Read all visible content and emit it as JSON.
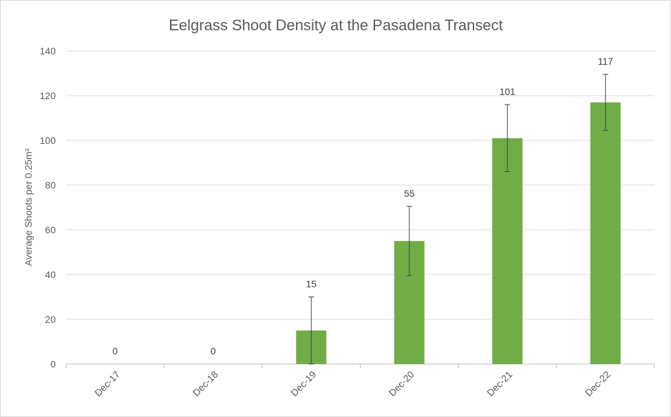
{
  "chart_data": {
    "type": "bar",
    "title": "Eelgrass Shoot Density at the Pasadena Transect",
    "ylabel": "Average Shoots per 0.25m²",
    "xlabel": "",
    "categories": [
      "Dec-17",
      "Dec-18",
      "Dec-19",
      "Dec-20",
      "Dec-21",
      "Dec-22"
    ],
    "values": [
      0,
      0,
      15,
      55,
      101,
      117
    ],
    "data_labels": [
      "0",
      "0",
      "15",
      "55",
      "101",
      "117"
    ],
    "error_bars": [
      0,
      0,
      15,
      15.5,
      15,
      12.5
    ],
    "ylim": [
      0,
      140
    ],
    "yticks": [
      0,
      20,
      40,
      60,
      80,
      100,
      120,
      140
    ],
    "grid": true,
    "legend": "none",
    "bar_color": "#70ad47"
  }
}
